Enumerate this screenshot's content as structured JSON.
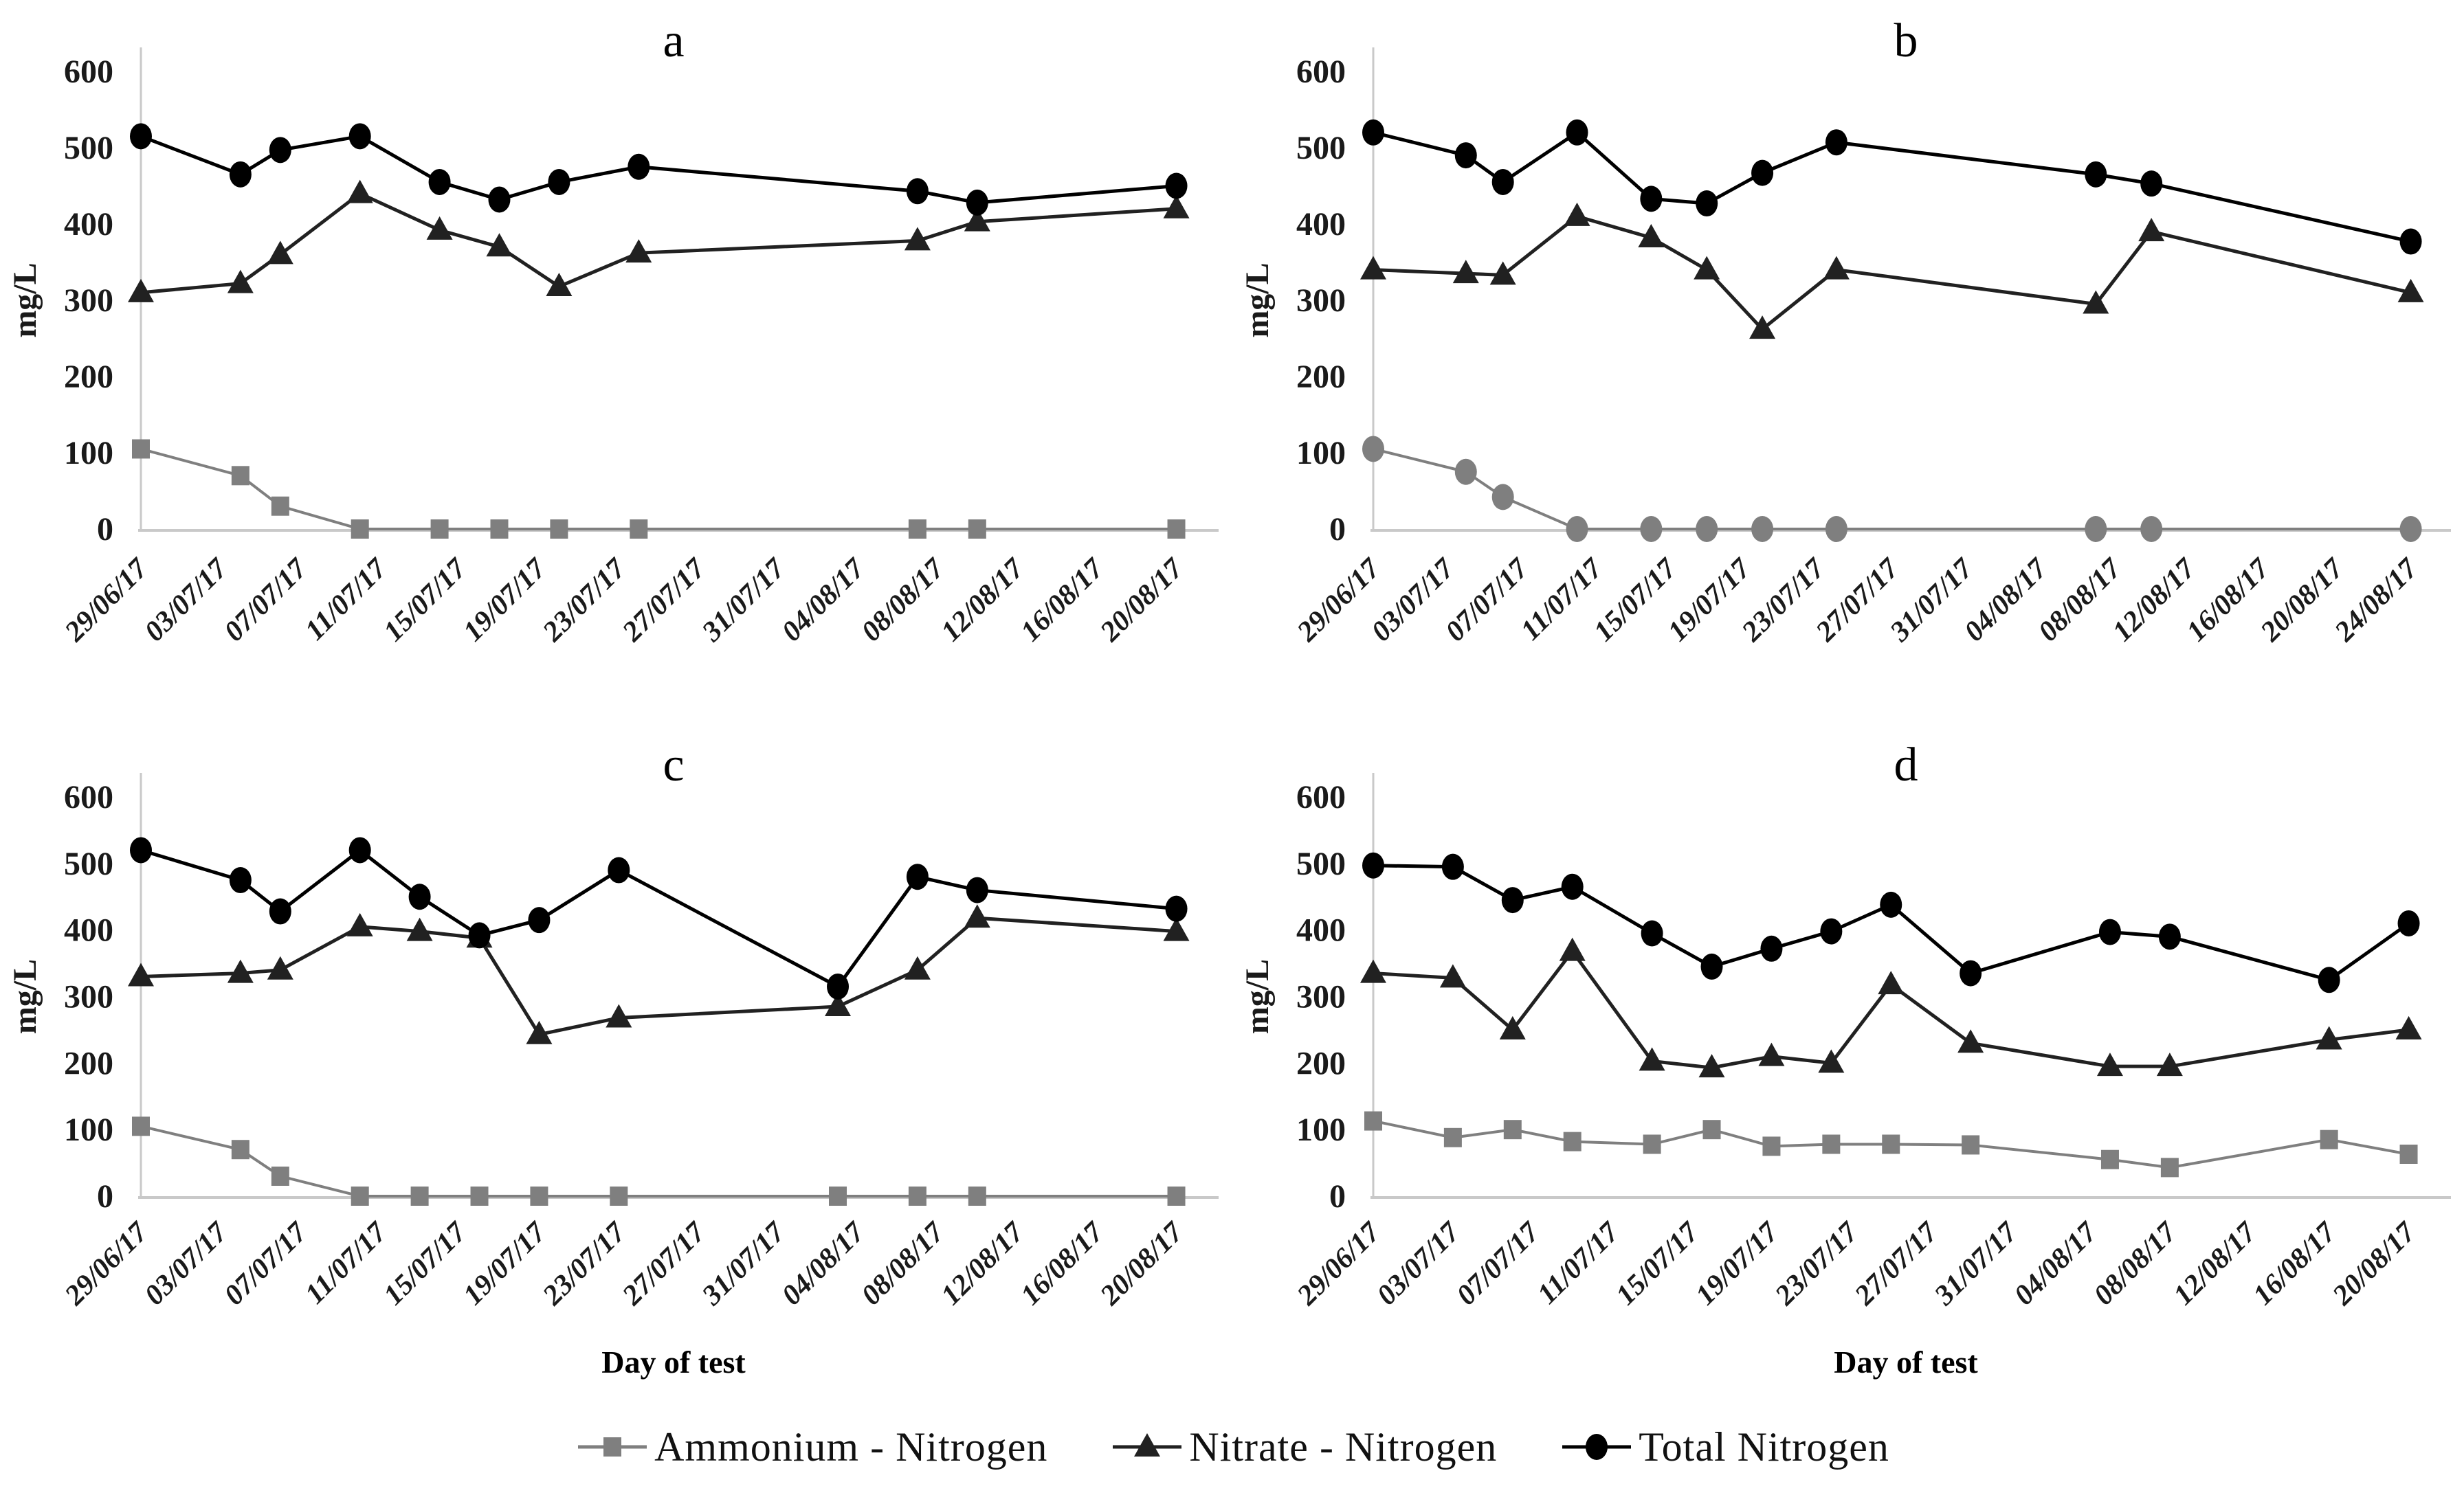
{
  "figure": {
    "y_axis_label": "mg/L",
    "x_axis_label": "Day of test",
    "y_ticks": [
      0,
      100,
      200,
      300,
      400,
      500,
      600
    ],
    "colors": {
      "ammonium": "#7f7f7f",
      "nitrate": "#212121",
      "total": "#000000",
      "axis": "#c9c9c9"
    }
  },
  "legend": {
    "items": [
      {
        "key": "ammonium",
        "label": "Ammonium - Nitrogen",
        "marker": "square",
        "color": "#7f7f7f"
      },
      {
        "key": "nitrate",
        "label": "Nitrate - Nitrogen",
        "marker": "triangle",
        "color": "#212121"
      },
      {
        "key": "total",
        "label": "Total Nitrogen",
        "marker": "circle",
        "color": "#000000"
      }
    ]
  },
  "chart_data": [
    {
      "id": "a",
      "type": "line",
      "title": "a",
      "ylim": [
        0,
        600
      ],
      "yticks": [
        0,
        100,
        200,
        300,
        400,
        500,
        600
      ],
      "ylabel": "mg/L",
      "xlabel": "",
      "show_xlabel": false,
      "tick_step_days": 4,
      "x_tick_labels": [
        "29/06/17",
        "03/07/17",
        "07/07/17",
        "11/07/17",
        "15/07/17",
        "19/07/17",
        "23/07/17",
        "27/07/17",
        "31/07/17",
        "04/08/17",
        "08/08/17",
        "12/08/17",
        "16/08/17",
        "20/08/17"
      ],
      "series": [
        {
          "key": "ammonium",
          "name": "Ammonium - Nitrogen",
          "marker": "square",
          "color": "#7f7f7f",
          "x": [
            0,
            5,
            7,
            11,
            15,
            18,
            21,
            25,
            39,
            42,
            52
          ],
          "y": [
            105,
            70,
            30,
            0,
            0,
            0,
            0,
            0,
            0,
            0,
            0
          ]
        },
        {
          "key": "nitrate",
          "name": "Nitrate - Nitrogen",
          "marker": "triangle",
          "color": "#212121",
          "x": [
            0,
            5,
            7,
            11,
            15,
            18,
            21,
            25,
            39,
            42,
            52
          ],
          "y": [
            310,
            322,
            360,
            440,
            392,
            370,
            318,
            362,
            378,
            403,
            420
          ]
        },
        {
          "key": "total",
          "name": "Total Nitrogen",
          "marker": "circle",
          "color": "#000000",
          "x": [
            0,
            5,
            7,
            11,
            15,
            18,
            21,
            25,
            39,
            42,
            52
          ],
          "y": [
            515,
            465,
            497,
            515,
            455,
            432,
            455,
            475,
            443,
            428,
            450
          ]
        }
      ]
    },
    {
      "id": "b",
      "type": "line",
      "title": "b",
      "ylim": [
        0,
        600
      ],
      "yticks": [
        0,
        100,
        200,
        300,
        400,
        500,
        600
      ],
      "ylabel": "mg/L",
      "xlabel": "",
      "show_xlabel": false,
      "tick_step_days": 4,
      "x_tick_labels": [
        "29/06/17",
        "03/07/17",
        "07/07/17",
        "11/07/17",
        "15/07/17",
        "19/07/17",
        "23/07/17",
        "27/07/17",
        "31/07/17",
        "04/08/17",
        "08/08/17",
        "12/08/17",
        "16/08/17",
        "20/08/17",
        "24/08/17"
      ],
      "series": [
        {
          "key": "ammonium",
          "name": "Ammonium - Nitrogen",
          "marker": "circle",
          "color": "#7f7f7f",
          "x": [
            0,
            5,
            7,
            11,
            15,
            18,
            21,
            25,
            39,
            42,
            56
          ],
          "y": [
            105,
            75,
            42,
            0,
            0,
            0,
            0,
            0,
            0,
            0,
            0
          ]
        },
        {
          "key": "nitrate",
          "name": "Nitrate - Nitrogen",
          "marker": "triangle",
          "color": "#212121",
          "x": [
            0,
            5,
            7,
            11,
            15,
            18,
            21,
            25,
            39,
            42,
            56
          ],
          "y": [
            340,
            335,
            333,
            410,
            382,
            340,
            262,
            340,
            295,
            390,
            310
          ]
        },
        {
          "key": "total",
          "name": "Total Nitrogen",
          "marker": "circle",
          "color": "#000000",
          "x": [
            0,
            5,
            7,
            11,
            15,
            18,
            21,
            25,
            39,
            42,
            56
          ],
          "y": [
            520,
            490,
            455,
            520,
            433,
            427,
            467,
            507,
            465,
            453,
            377
          ]
        }
      ]
    },
    {
      "id": "c",
      "type": "line",
      "title": "c",
      "ylim": [
        0,
        600
      ],
      "yticks": [
        0,
        100,
        200,
        300,
        400,
        500,
        600
      ],
      "ylabel": "mg/L",
      "xlabel": "Day of test",
      "show_xlabel": true,
      "tick_step_days": 4,
      "x_tick_labels": [
        "29/06/17",
        "03/07/17",
        "07/07/17",
        "11/07/17",
        "15/07/17",
        "19/07/17",
        "23/07/17",
        "27/07/17",
        "31/07/17",
        "04/08/17",
        "08/08/17",
        "12/08/17",
        "16/08/17",
        "20/08/17"
      ],
      "series": [
        {
          "key": "ammonium",
          "name": "Ammonium - Nitrogen",
          "marker": "square",
          "color": "#7f7f7f",
          "x": [
            0,
            5,
            7,
            11,
            14,
            17,
            20,
            24,
            35,
            39,
            42,
            52
          ],
          "y": [
            105,
            70,
            30,
            0,
            0,
            0,
            0,
            0,
            0,
            0,
            0,
            0
          ]
        },
        {
          "key": "nitrate",
          "name": "Nitrate - Nitrogen",
          "marker": "triangle",
          "color": "#212121",
          "x": [
            0,
            5,
            7,
            11,
            14,
            17,
            20,
            24,
            35,
            39,
            42,
            52
          ],
          "y": [
            330,
            335,
            340,
            405,
            398,
            388,
            243,
            268,
            285,
            340,
            418,
            398
          ]
        },
        {
          "key": "total",
          "name": "Total Nitrogen",
          "marker": "circle",
          "color": "#000000",
          "x": [
            0,
            5,
            7,
            11,
            14,
            17,
            20,
            24,
            35,
            39,
            42,
            52
          ],
          "y": [
            520,
            475,
            428,
            520,
            450,
            392,
            415,
            490,
            315,
            480,
            460,
            432
          ]
        }
      ]
    },
    {
      "id": "d",
      "type": "line",
      "title": "d",
      "ylim": [
        0,
        600
      ],
      "yticks": [
        0,
        100,
        200,
        300,
        400,
        500,
        600
      ],
      "ylabel": "mg/L",
      "xlabel": "Day of test",
      "show_xlabel": true,
      "tick_step_days": 4,
      "x_tick_labels": [
        "29/06/17",
        "03/07/17",
        "07/07/17",
        "11/07/17",
        "15/07/17",
        "19/07/17",
        "23/07/17",
        "27/07/17",
        "31/07/17",
        "04/08/17",
        "08/08/17",
        "12/08/17",
        "16/08/17",
        "20/08/17"
      ],
      "series": [
        {
          "key": "ammonium",
          "name": "Ammonium - Nitrogen",
          "marker": "square",
          "color": "#7f7f7f",
          "x": [
            0,
            4,
            7,
            10,
            14,
            17,
            20,
            23,
            26,
            30,
            37,
            40,
            48,
            52
          ],
          "y": [
            113,
            88,
            100,
            82,
            78,
            100,
            75,
            78,
            78,
            77,
            55,
            43,
            85,
            63
          ]
        },
        {
          "key": "nitrate",
          "name": "Nitrate - Nitrogen",
          "marker": "triangle",
          "color": "#212121",
          "x": [
            0,
            4,
            7,
            10,
            14,
            17,
            20,
            23,
            26,
            30,
            37,
            40,
            48,
            52
          ],
          "y": [
            335,
            328,
            250,
            368,
            203,
            193,
            210,
            200,
            318,
            230,
            195,
            195,
            235,
            250
          ]
        },
        {
          "key": "total",
          "name": "Total Nitrogen",
          "marker": "circle",
          "color": "#000000",
          "x": [
            0,
            4,
            7,
            10,
            14,
            17,
            20,
            23,
            26,
            30,
            37,
            40,
            48,
            52
          ],
          "y": [
            497,
            495,
            445,
            465,
            395,
            345,
            372,
            398,
            438,
            335,
            397,
            390,
            325,
            410
          ]
        }
      ]
    }
  ]
}
